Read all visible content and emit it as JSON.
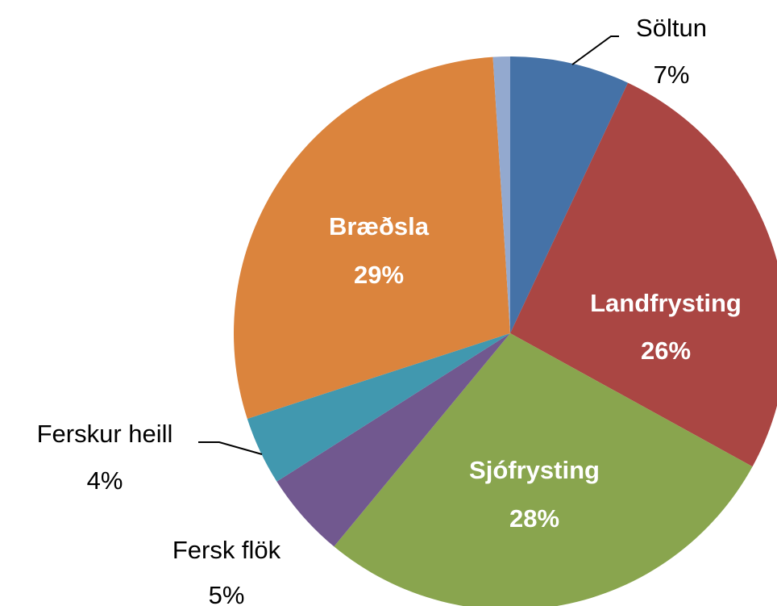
{
  "chart_data": {
    "type": "pie",
    "categories": [
      "Söltun",
      "Landfrysting",
      "Sjófrysting",
      "Fersk flök",
      "Ferskur heill",
      "Bræðsla",
      null
    ],
    "values": [
      7,
      26,
      28,
      5,
      4,
      29,
      1
    ],
    "value_labels": [
      "7%",
      "26%",
      "28%",
      "5%",
      "4%",
      "29%",
      null
    ],
    "colors": [
      "#4572a7",
      "#aa4643",
      "#89a54e",
      "#71588f",
      "#4198af",
      "#db843d",
      "#93a9cf"
    ]
  }
}
